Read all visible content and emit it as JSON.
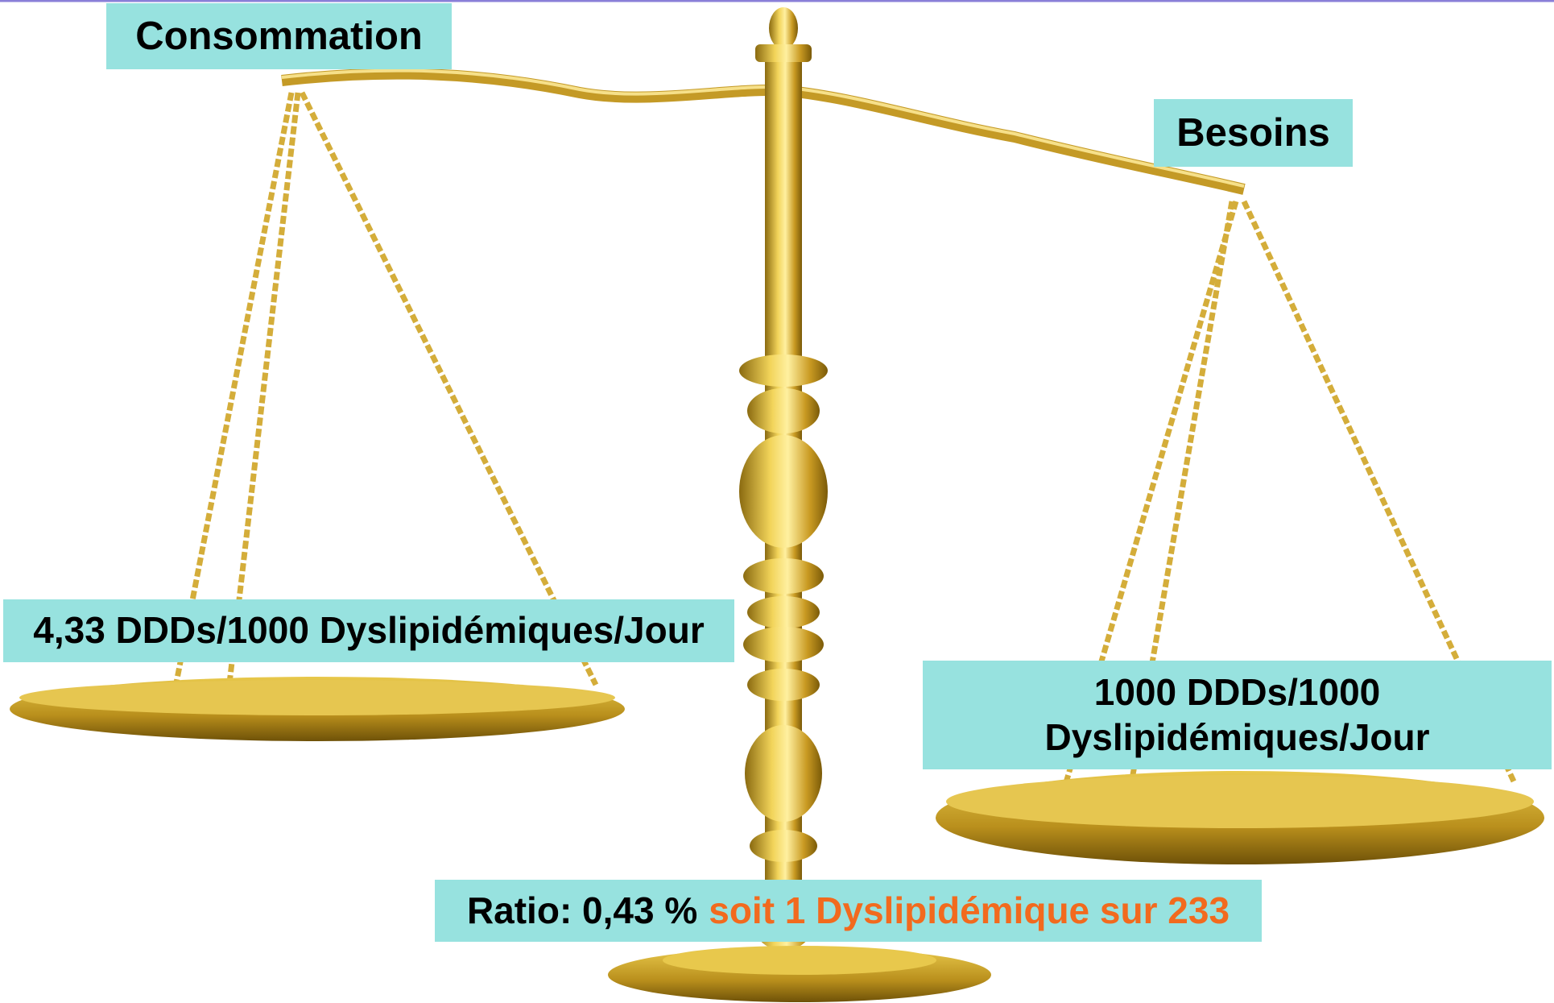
{
  "labels": {
    "consumption_title": "Consommation",
    "needs_title": "Besoins",
    "consumption_value": "4,33 DDDs/1000 Dyslipidémiques/Jour",
    "needs_value": "1000 DDDs/1000 Dyslipidémiques/Jour",
    "ratio_prefix": "Ratio: 0,43 %",
    "ratio_suffix": "soit 1 Dyslipidémique sur 233"
  }
}
